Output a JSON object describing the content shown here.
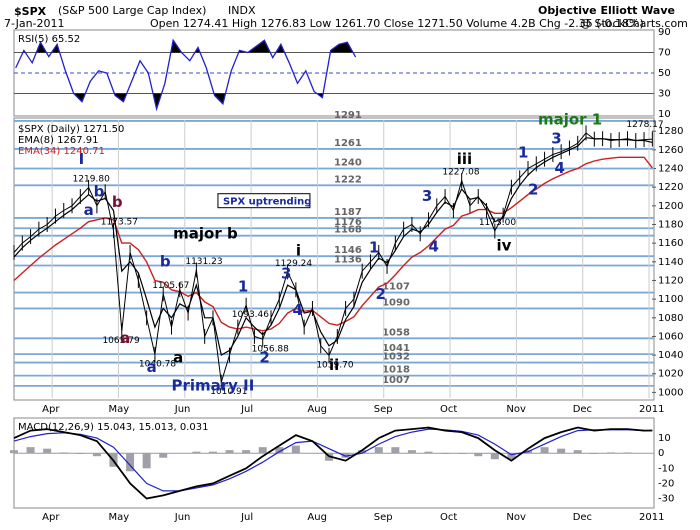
{
  "header": {
    "symbol": "$SPX",
    "name": "(S&P 500 Large Cap Index)",
    "exchange": "INDX",
    "title": "Objective Elliott Wave",
    "date": "7-Jan-2011",
    "quote": "Open 1274.41  High 1276.83  Low 1261.70  Close 1271.50  Volume 4.2B  Chg -2.35 (-0.18%)",
    "watermark": "@ StockCharts.com"
  },
  "chart_data": [
    {
      "type": "line",
      "panel": "rsi",
      "legend": "RSI(5) 65.52",
      "ylim": [
        10,
        90
      ],
      "yticks": [
        10,
        30,
        50,
        70,
        90
      ],
      "guides": [
        30,
        50,
        70
      ],
      "x": [
        1,
        6,
        11,
        16,
        21,
        26,
        31,
        36,
        41,
        46,
        51,
        56,
        61,
        66,
        71,
        76,
        81,
        86,
        91,
        96,
        101,
        106,
        111,
        116,
        121,
        126,
        131,
        136,
        141,
        146,
        151,
        156,
        161,
        166,
        171,
        176,
        181,
        186,
        191,
        196,
        201,
        206
      ],
      "values": [
        55,
        72,
        60,
        80,
        66,
        78,
        52,
        30,
        22,
        42,
        52,
        50,
        28,
        22,
        42,
        62,
        50,
        15,
        40,
        82,
        70,
        62,
        75,
        55,
        28,
        20,
        52,
        72,
        70,
        76,
        82,
        65,
        78,
        60,
        40,
        52,
        32,
        26,
        72,
        78,
        80,
        65.52
      ],
      "color": "#2020cc",
      "fill_color": "#000000"
    },
    {
      "type": "line",
      "panel": "price",
      "legend": [
        "$SPX (Daily) 1271.50",
        "EMA(8) 1267.91",
        "EMA(34) 1240.71"
      ],
      "ylim": [
        994,
        1292
      ],
      "yticks": [
        1000,
        1020,
        1040,
        1060,
        1080,
        1100,
        1120,
        1140,
        1160,
        1180,
        1200,
        1220,
        1240,
        1260,
        1280
      ],
      "xticks": [
        {
          "x": 23,
          "label": "Apr"
        },
        {
          "x": 63,
          "label": "May"
        },
        {
          "x": 103,
          "label": "Jun"
        },
        {
          "x": 143,
          "label": "Jul"
        },
        {
          "x": 183,
          "label": "Aug"
        },
        {
          "x": 223,
          "label": "Sep"
        },
        {
          "x": 263,
          "label": "Oct"
        },
        {
          "x": 303,
          "label": "Nov"
        },
        {
          "x": 343,
          "label": "Dec"
        },
        {
          "x": 383,
          "label": "2011"
        }
      ],
      "x": [
        0,
        5,
        10,
        15,
        20,
        25,
        30,
        35,
        40,
        45,
        50,
        55,
        60,
        65,
        70,
        75,
        80,
        85,
        90,
        95,
        100,
        105,
        110,
        115,
        120,
        125,
        130,
        135,
        140,
        145,
        150,
        155,
        160,
        165,
        170,
        175,
        180,
        185,
        190,
        195,
        200,
        205,
        210,
        215,
        220,
        225,
        230,
        235,
        240,
        245,
        250,
        255,
        260,
        265,
        270,
        275,
        280,
        285,
        290,
        295,
        300,
        305,
        310,
        315,
        320,
        325,
        330,
        335,
        340,
        345,
        350,
        355,
        360,
        365,
        370,
        375,
        380,
        385
      ],
      "values": [
        1150,
        1160,
        1167,
        1175,
        1180,
        1189,
        1195,
        1200,
        1210,
        1219.8,
        1200,
        1215,
        1173.57,
        1065.79,
        1150,
        1120,
        1080,
        1040.78,
        1105.67,
        1070,
        1110,
        1085,
        1131.23,
        1060,
        1080,
        1010.91,
        1040,
        1070,
        1093.46,
        1060,
        1056.88,
        1080,
        1100,
        1129.24,
        1110,
        1070,
        1090,
        1050,
        1039.7,
        1060,
        1090,
        1100,
        1130,
        1140,
        1150,
        1135,
        1160,
        1175,
        1180,
        1170,
        1185,
        1200,
        1210,
        1195,
        1227.08,
        1200,
        1210,
        1195,
        1173,
        1190,
        1220,
        1230,
        1240,
        1245,
        1250,
        1255,
        1258,
        1262,
        1267,
        1278.17,
        1271.5,
        1272,
        1270,
        1271,
        1272,
        1270,
        1271,
        1271.5
      ],
      "ema8": [
        1145,
        1155,
        1163,
        1170,
        1176,
        1183,
        1190,
        1196,
        1204,
        1212,
        1205,
        1208,
        1195,
        1130,
        1140,
        1128,
        1100,
        1070,
        1090,
        1080,
        1095,
        1090,
        1115,
        1080,
        1080,
        1040,
        1045,
        1060,
        1080,
        1070,
        1062,
        1072,
        1090,
        1115,
        1110,
        1085,
        1087,
        1065,
        1050,
        1056,
        1078,
        1092,
        1118,
        1132,
        1144,
        1139,
        1152,
        1167,
        1175,
        1172,
        1180,
        1193,
        1204,
        1199,
        1218,
        1207,
        1209,
        1200,
        1183,
        1187,
        1208,
        1222,
        1233,
        1241,
        1247,
        1252,
        1256,
        1260,
        1264,
        1273,
        1272,
        1272,
        1271,
        1271,
        1271,
        1270,
        1270,
        1268
      ],
      "ema34": [
        1120,
        1128,
        1136,
        1144,
        1151,
        1158,
        1164,
        1170,
        1176,
        1183,
        1185,
        1187,
        1185,
        1160,
        1160,
        1153,
        1140,
        1120,
        1118,
        1110,
        1108,
        1103,
        1107,
        1097,
        1092,
        1075,
        1070,
        1068,
        1070,
        1068,
        1066,
        1068,
        1074,
        1085,
        1090,
        1087,
        1088,
        1081,
        1074,
        1072,
        1076,
        1081,
        1093,
        1103,
        1113,
        1117,
        1126,
        1136,
        1145,
        1150,
        1157,
        1166,
        1175,
        1179,
        1189,
        1192,
        1196,
        1196,
        1192,
        1192,
        1198,
        1205,
        1212,
        1218,
        1224,
        1229,
        1233,
        1237,
        1240,
        1245,
        1248,
        1250,
        1251,
        1252,
        1252,
        1252,
        1252,
        1240.71
      ],
      "price_labels": [
        {
          "x": 45,
          "y": 1219.8,
          "text": "1219.80"
        },
        {
          "x": 62,
          "y": 1173.57,
          "text": "1173.57"
        },
        {
          "x": 63,
          "y": 1065.79,
          "text": "1065.79"
        },
        {
          "x": 85,
          "y": 1040.78,
          "text": "1040.78"
        },
        {
          "x": 93,
          "y": 1105.67,
          "text": "1105.67"
        },
        {
          "x": 113,
          "y": 1131.23,
          "text": "1131.23"
        },
        {
          "x": 128,
          "y": 1010.91,
          "text": "1010.91"
        },
        {
          "x": 141,
          "y": 1093.46,
          "text": "1093.46"
        },
        {
          "x": 153,
          "y": 1056.88,
          "text": "1056.88"
        },
        {
          "x": 167,
          "y": 1129.24,
          "text": "1129.24"
        },
        {
          "x": 192,
          "y": 1039.7,
          "text": "1039.70"
        },
        {
          "x": 268,
          "y": 1227.08,
          "text": "1227.08"
        },
        {
          "x": 290,
          "y": 1173,
          "text": "1173.00"
        },
        {
          "x": 379,
          "y": 1278.17,
          "text": "1278.17"
        }
      ],
      "levels": [
        1291,
        1261,
        1240,
        1222,
        1187,
        1176,
        1168,
        1146,
        1136,
        1107,
        1090,
        1058,
        1041,
        1032,
        1018,
        1007
      ],
      "level_xs": [
        193,
        193,
        193,
        193,
        193,
        193,
        193,
        193,
        193,
        222,
        222,
        222,
        222,
        222,
        222,
        222
      ],
      "wave_labels": [
        {
          "x": 39,
          "y": 1245,
          "text": "I",
          "color": "#1a2a9a"
        },
        {
          "x": 48,
          "y": 1210,
          "text": "b",
          "color": "#1a2a9a"
        },
        {
          "x": 59,
          "y": 1199,
          "text": "b",
          "color": "#7a1030"
        },
        {
          "x": 42,
          "y": 1190,
          "text": "a",
          "color": "#1a2a9a"
        },
        {
          "x": 96,
          "y": 1165,
          "text": "major b",
          "color": "#000000"
        },
        {
          "x": 88,
          "y": 1135,
          "text": "b",
          "color": "#1a2a9a"
        },
        {
          "x": 64,
          "y": 1053,
          "text": "a",
          "color": "#7a1030"
        },
        {
          "x": 80,
          "y": 1022,
          "text": "a",
          "color": "#1a2a9a"
        },
        {
          "x": 96,
          "y": 1032,
          "text": "a",
          "color": "#000000"
        },
        {
          "x": 95,
          "y": 1002,
          "text": "Primary II",
          "color": "#1a2a9a"
        },
        {
          "x": 135,
          "y": 1108,
          "text": "1",
          "color": "#1a2a9a"
        },
        {
          "x": 148,
          "y": 1032,
          "text": "2",
          "color": "#1a2a9a"
        },
        {
          "x": 161,
          "y": 1122,
          "text": "3",
          "color": "#1a2a9a"
        },
        {
          "x": 168,
          "y": 1083,
          "text": "4",
          "color": "#1a2a9a"
        },
        {
          "x": 170,
          "y": 1147,
          "text": "i",
          "color": "#000000"
        },
        {
          "x": 190,
          "y": 1024,
          "text": "ii",
          "color": "#000000"
        },
        {
          "x": 214,
          "y": 1150,
          "text": "1",
          "color": "#1a2a9a"
        },
        {
          "x": 218,
          "y": 1100,
          "text": "2",
          "color": "#1a2a9a"
        },
        {
          "x": 246,
          "y": 1205,
          "text": "3",
          "color": "#1a2a9a"
        },
        {
          "x": 250,
          "y": 1151,
          "text": "4",
          "color": "#1a2a9a"
        },
        {
          "x": 267,
          "y": 1245,
          "text": "iii",
          "color": "#000000"
        },
        {
          "x": 291,
          "y": 1152,
          "text": "iv",
          "color": "#000000"
        },
        {
          "x": 304,
          "y": 1252,
          "text": "1",
          "color": "#1a2a9a"
        },
        {
          "x": 310,
          "y": 1212,
          "text": "2",
          "color": "#1a2a9a"
        },
        {
          "x": 324,
          "y": 1267,
          "text": "3",
          "color": "#1a2a9a"
        },
        {
          "x": 326,
          "y": 1235,
          "text": "4",
          "color": "#1a2a9a"
        },
        {
          "x": 316,
          "y": 1287,
          "text": "major 1",
          "color": "#1a7a1a"
        }
      ],
      "annotation": "SPX uptrending",
      "color": "#000000",
      "ema8_color": "#000000",
      "ema34_color": "#cc2020",
      "level_color": "#7aa8d8"
    },
    {
      "type": "line",
      "panel": "macd",
      "legend": "MACD(12,26,9) 15.043, 15.013, 0.031",
      "ylim": [
        -35,
        22
      ],
      "yticks": [
        -30,
        -20,
        -10,
        0,
        10
      ],
      "x": [
        0,
        10,
        20,
        30,
        40,
        50,
        60,
        70,
        80,
        90,
        100,
        110,
        120,
        130,
        140,
        150,
        160,
        170,
        180,
        190,
        200,
        210,
        220,
        230,
        240,
        250,
        260,
        270,
        280,
        290,
        300,
        310,
        320,
        330,
        340,
        350,
        360,
        370,
        380,
        385
      ],
      "macd": [
        10,
        15,
        16,
        14,
        12,
        8,
        -5,
        -20,
        -30,
        -28,
        -25,
        -22,
        -20,
        -15,
        -10,
        -2,
        5,
        12,
        8,
        -2,
        -5,
        2,
        10,
        15,
        16,
        17,
        15,
        14,
        10,
        2,
        -5,
        3,
        10,
        14,
        17,
        15,
        16,
        16,
        15,
        15.043
      ],
      "signal": [
        8,
        11,
        13,
        13.5,
        12.5,
        10,
        4,
        -8,
        -20,
        -25,
        -25,
        -23,
        -21,
        -17,
        -12,
        -6,
        1,
        7,
        8,
        3,
        -2,
        0,
        6,
        11,
        14,
        16,
        15.5,
        14.5,
        12,
        6,
        -1,
        1,
        6,
        11,
        15,
        15.5,
        15.5,
        15.5,
        15,
        15.013
      ],
      "histogram": [
        2,
        4,
        3,
        0.5,
        -0.5,
        -2,
        -9,
        -12,
        -10,
        -3,
        0,
        1,
        1,
        2,
        2,
        4,
        4,
        5,
        0,
        -5,
        -3,
        2,
        4,
        4,
        2,
        1,
        -0.5,
        -0.5,
        -2,
        -4,
        -4,
        2,
        4,
        3,
        2,
        -0.5,
        0.5,
        0.5,
        0,
        0.031
      ],
      "macd_color": "#000000",
      "signal_color": "#2020cc",
      "hist_color": "#a0a0a8"
    }
  ]
}
